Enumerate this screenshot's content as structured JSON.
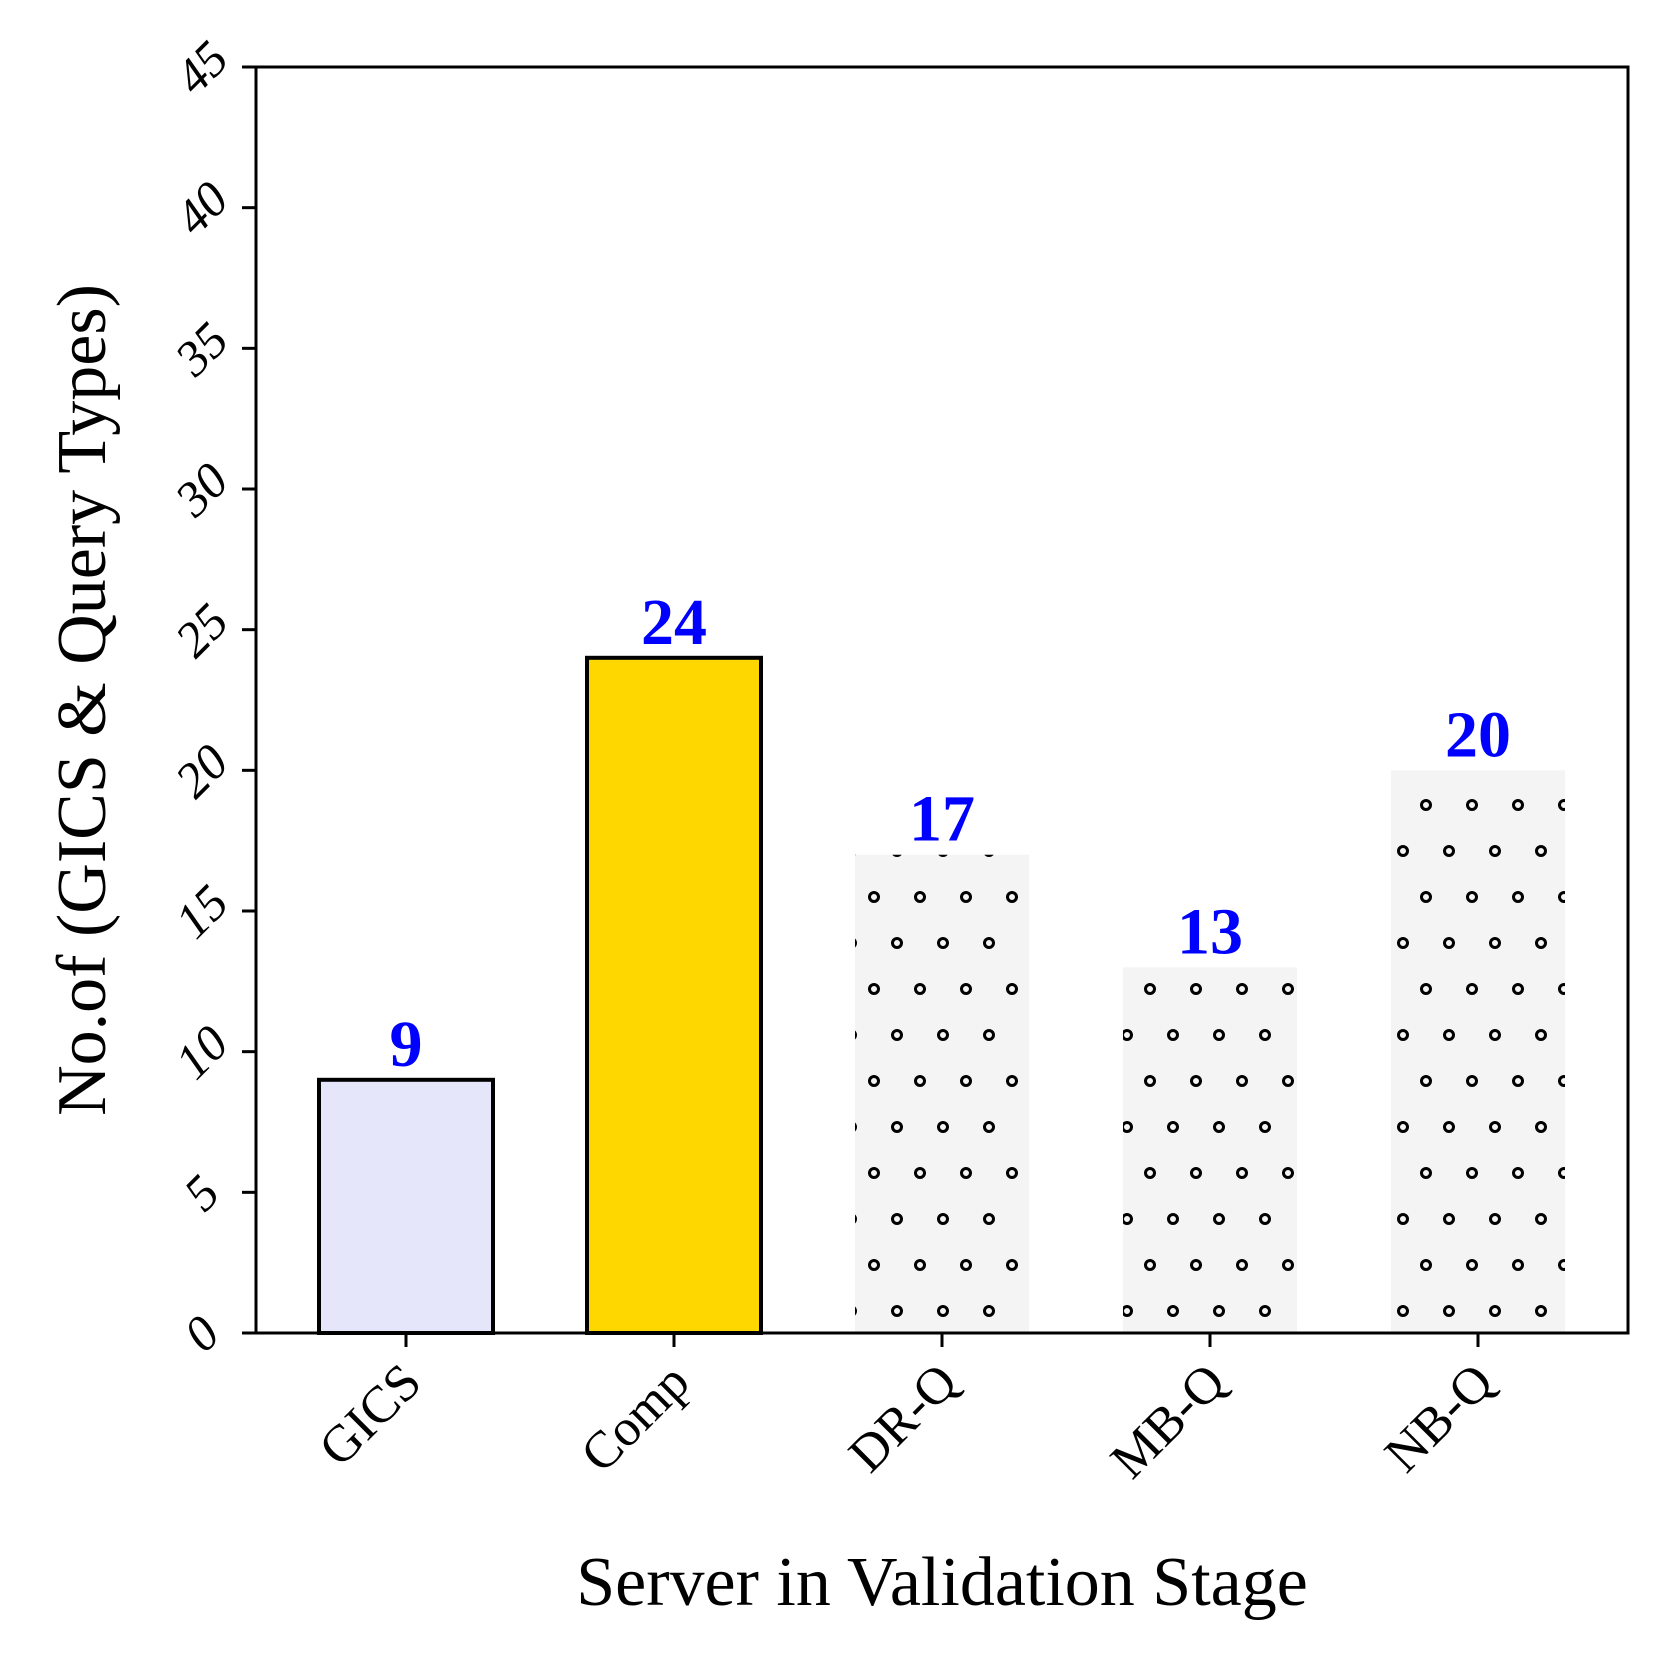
{
  "chart_data": {
    "type": "bar",
    "categories": [
      "GICS",
      "Comp",
      "DR-Q",
      "MB-Q",
      "NB-Q"
    ],
    "values": [
      9,
      24,
      17,
      13,
      20
    ],
    "data_labels": [
      "9",
      "24",
      "17",
      "13",
      "20"
    ],
    "bar_styles": [
      {
        "fill": "#e6e6fa",
        "edge": "#000000",
        "pattern": "none"
      },
      {
        "fill": "#ffd700",
        "edge": "#000000",
        "pattern": "none"
      },
      {
        "fill": "#f4f4f4",
        "edge": "none",
        "pattern": "dots"
      },
      {
        "fill": "#f4f4f4",
        "edge": "none",
        "pattern": "dots"
      },
      {
        "fill": "#f4f4f4",
        "edge": "none",
        "pattern": "dots"
      }
    ],
    "data_label_color": "#0000ff",
    "title": "",
    "xlabel": "Server in Validation Stage",
    "ylabel": "No.of (GICS & Query Types)",
    "ylim": [
      0,
      45
    ],
    "yticks": [
      0,
      5,
      10,
      15,
      20,
      25,
      30,
      35,
      40,
      45
    ],
    "grid": false,
    "legend": "none"
  }
}
